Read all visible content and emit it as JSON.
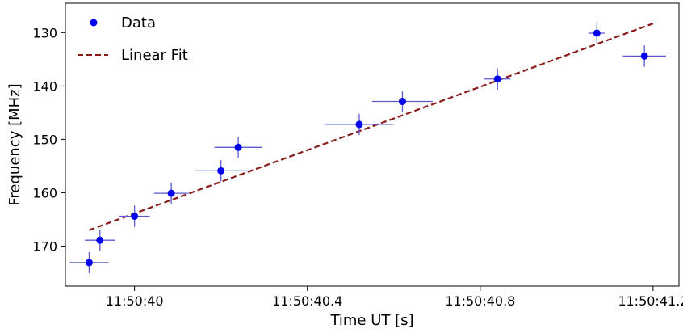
{
  "chart_data": {
    "type": "scatter",
    "title": "",
    "xlabel": "Time UT [s]",
    "ylabel": "Frequency [MHz]",
    "x_ticks": [
      {
        "value": 40.0,
        "label": "11:50:40"
      },
      {
        "value": 40.4,
        "label": "11:50:40.4"
      },
      {
        "value": 40.8,
        "label": "11:50:40.8"
      },
      {
        "value": 41.2,
        "label": "11:50:41.2"
      }
    ],
    "y_ticks": [
      130,
      140,
      150,
      160,
      170
    ],
    "xlim": [
      39.84,
      41.26
    ],
    "ylim": [
      177.5,
      124.5
    ],
    "y_inverted": true,
    "grid": false,
    "legend_position": "top-left",
    "series": [
      {
        "name": "Data",
        "kind": "points-with-errorbars",
        "color": "#0000ee",
        "errorbar_color": "#5a5ad2",
        "points": [
          {
            "x": 39.895,
            "y": 173.1,
            "xerr": 0.045,
            "yerr": 2.0
          },
          {
            "x": 39.92,
            "y": 168.9,
            "xerr": 0.035,
            "yerr": 2.0
          },
          {
            "x": 40.0,
            "y": 164.4,
            "xerr": 0.035,
            "yerr": 2.0
          },
          {
            "x": 40.085,
            "y": 160.1,
            "xerr": 0.04,
            "yerr": 2.0
          },
          {
            "x": 40.2,
            "y": 155.9,
            "xerr": 0.06,
            "yerr": 2.0
          },
          {
            "x": 40.24,
            "y": 151.5,
            "xerr": 0.055,
            "yerr": 2.0
          },
          {
            "x": 40.52,
            "y": 147.2,
            "xerr": 0.08,
            "yerr": 2.0
          },
          {
            "x": 40.62,
            "y": 142.9,
            "xerr": 0.07,
            "yerr": 2.0
          },
          {
            "x": 40.84,
            "y": 138.7,
            "xerr": 0.03,
            "yerr": 2.0
          },
          {
            "x": 41.07,
            "y": 130.1,
            "xerr": 0.02,
            "yerr": 2.0
          },
          {
            "x": 41.18,
            "y": 134.4,
            "xerr": 0.05,
            "yerr": 2.0
          }
        ]
      },
      {
        "name": "Linear Fit",
        "kind": "dashed-line",
        "color": "#8b1a1a",
        "x": [
          39.895,
          41.2
        ],
        "y": [
          167.0,
          128.3
        ]
      }
    ]
  }
}
